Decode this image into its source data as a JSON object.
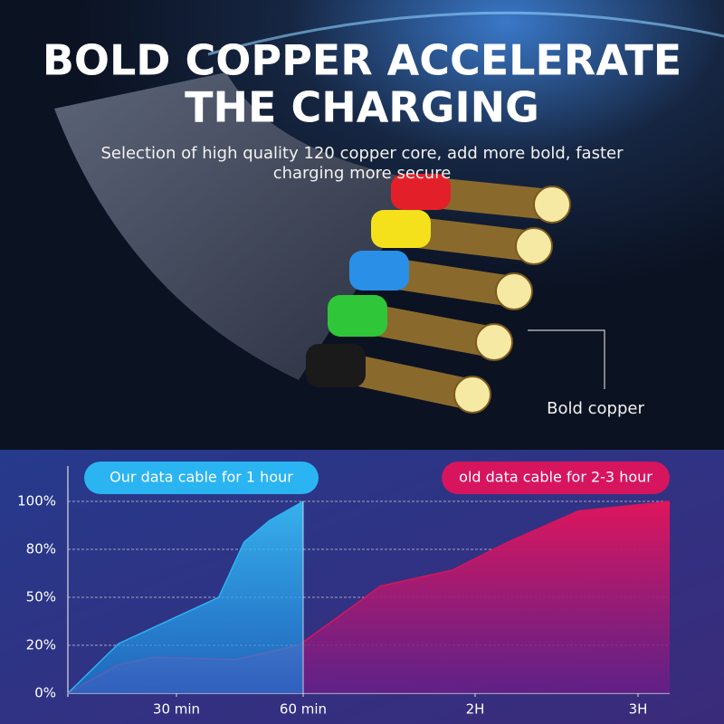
{
  "header": {
    "title": [
      "BOLD COPPER ACCELERATE",
      "THE CHARGING"
    ],
    "subtitle": [
      "Selection of high quality 120 copper core, add more bold, faster",
      "charging more secure"
    ],
    "callout": "Bold copper"
  },
  "chart_data": {
    "type": "area",
    "xlim": [
      0,
      190
    ],
    "ylim": [
      0,
      100
    ],
    "xticks": [
      {
        "value": 30,
        "label": "30 min"
      },
      {
        "value": 60,
        "label": "60 min"
      },
      {
        "value": 120,
        "label": "2H"
      },
      {
        "value": 180,
        "label": "3H"
      }
    ],
    "yticks": [
      {
        "value": 0,
        "label": "0%"
      },
      {
        "value": 20,
        "label": "20%"
      },
      {
        "value": 50,
        "label": "50%"
      },
      {
        "value": 80,
        "label": "80%"
      },
      {
        "value": 100,
        "label": "100%"
      }
    ],
    "grid": true,
    "series": [
      {
        "name": "Our data cable for 1 hour",
        "color": "#2ab4f2",
        "x": [
          0,
          14,
          31,
          40,
          46,
          52,
          60
        ],
        "values": [
          0,
          21,
          39,
          50,
          83,
          92,
          100
        ]
      },
      {
        "name": "old data cable for 2-3 hour",
        "color": "#d6155e",
        "x": [
          0,
          14,
          24,
          44,
          59,
          87,
          112,
          132,
          158,
          190
        ],
        "values": [
          0,
          12,
          15,
          14,
          20,
          57,
          67,
          83,
          96,
          100
        ]
      }
    ]
  }
}
